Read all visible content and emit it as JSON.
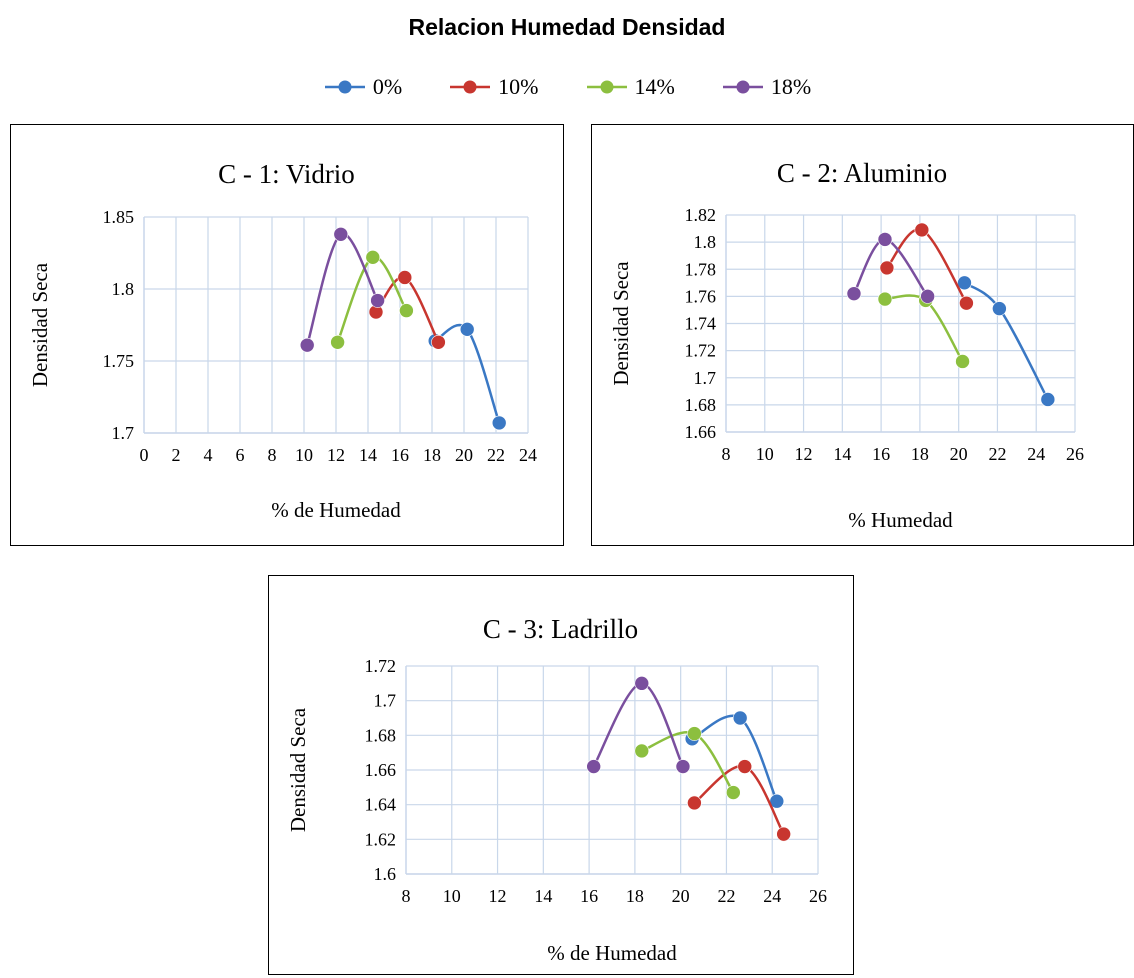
{
  "figure": {
    "title": "Relacion Humedad Densidad"
  },
  "legend": [
    {
      "label": "0%",
      "color": "#3a78c4"
    },
    {
      "label": "10%",
      "color": "#c8362f"
    },
    {
      "label": "14%",
      "color": "#8cbf3f"
    },
    {
      "label": "18%",
      "color": "#7a4f9e"
    }
  ],
  "chart_data": [
    {
      "type": "line",
      "title": "C - 1: Vidrio",
      "xlabel": "% de Humedad",
      "ylabel": "Densidad Seca",
      "xlim": [
        0,
        24
      ],
      "xticks": [
        0,
        2,
        4,
        6,
        8,
        10,
        12,
        14,
        16,
        18,
        20,
        22,
        24
      ],
      "ylim": [
        1.7,
        1.85
      ],
      "yticks": [
        1.7,
        1.75,
        1.8,
        1.85
      ],
      "grid": true,
      "smooth": true,
      "series": [
        {
          "name": "0%",
          "color": "#3a78c4",
          "x": [
            18.2,
            20.2,
            22.2
          ],
          "y": [
            1.764,
            1.772,
            1.707
          ]
        },
        {
          "name": "10%",
          "color": "#c8362f",
          "x": [
            14.5,
            16.3,
            18.4
          ],
          "y": [
            1.784,
            1.808,
            1.763
          ]
        },
        {
          "name": "14%",
          "color": "#8cbf3f",
          "x": [
            12.1,
            14.3,
            16.4
          ],
          "y": [
            1.763,
            1.822,
            1.785
          ]
        },
        {
          "name": "18%",
          "color": "#7a4f9e",
          "x": [
            10.2,
            12.3,
            14.6
          ],
          "y": [
            1.761,
            1.838,
            1.792
          ]
        }
      ]
    },
    {
      "type": "line",
      "title": "C - 2: Aluminio",
      "xlabel": "% Humedad",
      "ylabel": "Densidad Seca",
      "xlim": [
        8,
        26
      ],
      "xticks": [
        8,
        10,
        12,
        14,
        16,
        18,
        20,
        22,
        24,
        26
      ],
      "ylim": [
        1.66,
        1.82
      ],
      "yticks": [
        1.66,
        1.68,
        1.7,
        1.72,
        1.74,
        1.76,
        1.78,
        1.8,
        1.82
      ],
      "grid": true,
      "smooth": true,
      "series": [
        {
          "name": "0%",
          "color": "#3a78c4",
          "x": [
            20.3,
            22.1,
            24.6
          ],
          "y": [
            1.77,
            1.751,
            1.684
          ]
        },
        {
          "name": "10%",
          "color": "#c8362f",
          "x": [
            16.3,
            18.1,
            20.4
          ],
          "y": [
            1.781,
            1.809,
            1.755
          ]
        },
        {
          "name": "14%",
          "color": "#8cbf3f",
          "x": [
            16.2,
            18.3,
            20.2
          ],
          "y": [
            1.758,
            1.757,
            1.712
          ]
        },
        {
          "name": "18%",
          "color": "#7a4f9e",
          "x": [
            14.6,
            16.2,
            18.4
          ],
          "y": [
            1.762,
            1.802,
            1.76
          ]
        }
      ]
    },
    {
      "type": "line",
      "title": "C - 3: Ladrillo",
      "xlabel": "% de Humedad",
      "ylabel": "Densidad Seca",
      "xlim": [
        8,
        26
      ],
      "xticks": [
        8,
        10,
        12,
        14,
        16,
        18,
        20,
        22,
        24,
        26
      ],
      "ylim": [
        1.6,
        1.72
      ],
      "yticks": [
        1.6,
        1.62,
        1.64,
        1.66,
        1.68,
        1.7,
        1.72
      ],
      "grid": true,
      "smooth": true,
      "series": [
        {
          "name": "0%",
          "color": "#3a78c4",
          "x": [
            20.5,
            22.6,
            24.2
          ],
          "y": [
            1.678,
            1.69,
            1.642
          ]
        },
        {
          "name": "10%",
          "color": "#c8362f",
          "x": [
            20.6,
            22.8,
            24.5
          ],
          "y": [
            1.641,
            1.662,
            1.623
          ]
        },
        {
          "name": "14%",
          "color": "#8cbf3f",
          "x": [
            18.3,
            20.6,
            22.3
          ],
          "y": [
            1.671,
            1.681,
            1.647
          ]
        },
        {
          "name": "18%",
          "color": "#7a4f9e",
          "x": [
            16.2,
            18.3,
            20.1
          ],
          "y": [
            1.662,
            1.71,
            1.662
          ]
        }
      ]
    }
  ]
}
